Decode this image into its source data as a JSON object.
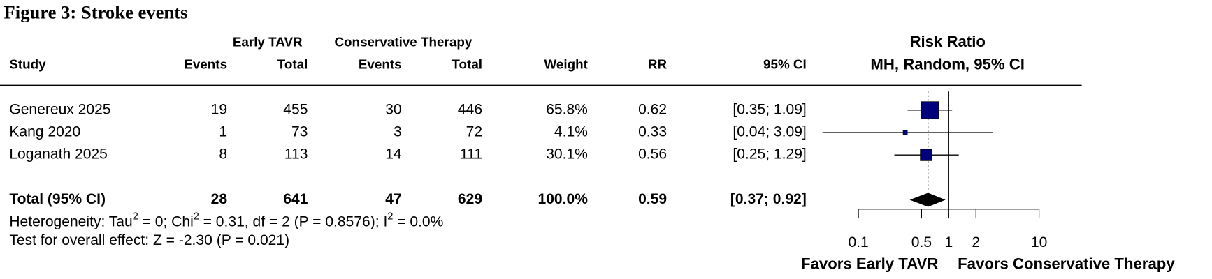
{
  "chart_data": {
    "type": "forest",
    "title": "Figure 3: Stroke events",
    "group_headers": [
      "Early TAVR",
      "Conservative Therapy"
    ],
    "columns": [
      "Study",
      "Events",
      "Total",
      "Events",
      "Total",
      "Weight",
      "RR",
      "95% CI"
    ],
    "plot_header": [
      "Risk Ratio",
      "MH, Random, 95% CI"
    ],
    "studies": [
      {
        "name": "Genereux 2025",
        "e1": 19,
        "n1": 455,
        "e2": 30,
        "n2": 446,
        "weight": 65.8,
        "weight_label": "65.8%",
        "rr": 0.62,
        "ci": [
          0.35,
          1.09
        ],
        "ci_label": "[0.35; 1.09]"
      },
      {
        "name": "Kang 2020",
        "e1": 1,
        "n1": 73,
        "e2": 3,
        "n2": 72,
        "weight": 4.1,
        "weight_label": "4.1%",
        "rr": 0.33,
        "ci": [
          0.04,
          3.09
        ],
        "ci_label": "[0.04; 3.09]"
      },
      {
        "name": "Loganath 2025",
        "e1": 8,
        "n1": 113,
        "e2": 14,
        "n2": 111,
        "weight": 30.1,
        "weight_label": "30.1%",
        "rr": 0.56,
        "ci": [
          0.25,
          1.29
        ],
        "ci_label": "[0.25; 1.29]"
      }
    ],
    "total": {
      "name": "Total (95% CI)",
      "e1": 28,
      "n1": 641,
      "e2": 47,
      "n2": 629,
      "weight": 100.0,
      "weight_label": "100.0%",
      "rr": 0.59,
      "ci": [
        0.37,
        0.92
      ],
      "ci_label": "[0.37; 0.92]"
    },
    "heterogeneity": [
      "Heterogeneity: Tau",
      "2",
      " = 0; Chi",
      "2",
      " = 0.31, df = 2 (P = 0.8576); I",
      "2",
      " = 0.0%"
    ],
    "overall_effect": "Test for overall effect: Z = -2.30 (P = 0.021)",
    "xlim": [
      0.1,
      10
    ],
    "xticks": [
      0.1,
      0.5,
      1,
      2,
      10
    ],
    "log_scale": true,
    "favors": [
      "Favors Early TAVR",
      "Favors Conservative Therapy"
    ],
    "box_color": "#00007f"
  }
}
